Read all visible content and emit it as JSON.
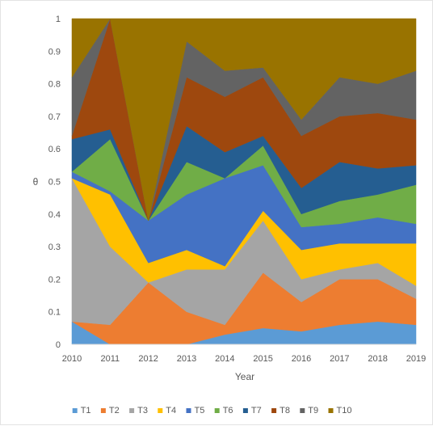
{
  "chart_data": {
    "type": "area",
    "stacked": true,
    "x": [
      2010,
      2011,
      2012,
      2013,
      2014,
      2015,
      2016,
      2017,
      2018,
      2019
    ],
    "xlabel": "Year",
    "ylabel": "θ",
    "ylim": [
      0,
      1
    ],
    "yticks": [
      "0",
      "0.1",
      "0.2",
      "0.3",
      "0.4",
      "0.5",
      "0.6",
      "0.7",
      "0.8",
      "0.9",
      "1"
    ],
    "legend_position": "bottom",
    "grid": false,
    "series": [
      {
        "name": "T1",
        "color": "#5B9BD5",
        "values": [
          0.07,
          0.0,
          0.0,
          0.0,
          0.03,
          0.05,
          0.04,
          0.06,
          0.07,
          0.06
        ]
      },
      {
        "name": "T2",
        "color": "#ED7D31",
        "values": [
          0.0,
          0.06,
          0.19,
          0.1,
          0.03,
          0.17,
          0.09,
          0.14,
          0.13,
          0.08
        ]
      },
      {
        "name": "T3",
        "color": "#A5A5A5",
        "values": [
          0.44,
          0.24,
          0.0,
          0.13,
          0.17,
          0.16,
          0.07,
          0.03,
          0.05,
          0.04
        ]
      },
      {
        "name": "T4",
        "color": "#FFC000",
        "values": [
          0.0,
          0.16,
          0.06,
          0.06,
          0.01,
          0.03,
          0.09,
          0.08,
          0.06,
          0.13
        ]
      },
      {
        "name": "T5",
        "color": "#4472C4",
        "values": [
          0.02,
          0.01,
          0.13,
          0.17,
          0.27,
          0.14,
          0.07,
          0.06,
          0.08,
          0.06
        ]
      },
      {
        "name": "T6",
        "color": "#70AD47",
        "values": [
          0.0,
          0.16,
          0.0,
          0.1,
          0.0,
          0.06,
          0.04,
          0.07,
          0.07,
          0.12
        ]
      },
      {
        "name": "T7",
        "color": "#255E91",
        "values": [
          0.1,
          0.03,
          0.0,
          0.11,
          0.08,
          0.03,
          0.08,
          0.12,
          0.08,
          0.06
        ]
      },
      {
        "name": "T8",
        "color": "#9E480E",
        "values": [
          0.01,
          0.34,
          0.0,
          0.15,
          0.17,
          0.18,
          0.16,
          0.14,
          0.17,
          0.14
        ]
      },
      {
        "name": "T9",
        "color": "#636363",
        "values": [
          0.18,
          0.0,
          0.0,
          0.11,
          0.08,
          0.03,
          0.05,
          0.12,
          0.09,
          0.15
        ]
      },
      {
        "name": "T10",
        "color": "#997300",
        "values": [
          0.18,
          0.0,
          0.62,
          0.07,
          0.16,
          0.15,
          0.31,
          0.18,
          0.2,
          0.16
        ]
      }
    ]
  }
}
